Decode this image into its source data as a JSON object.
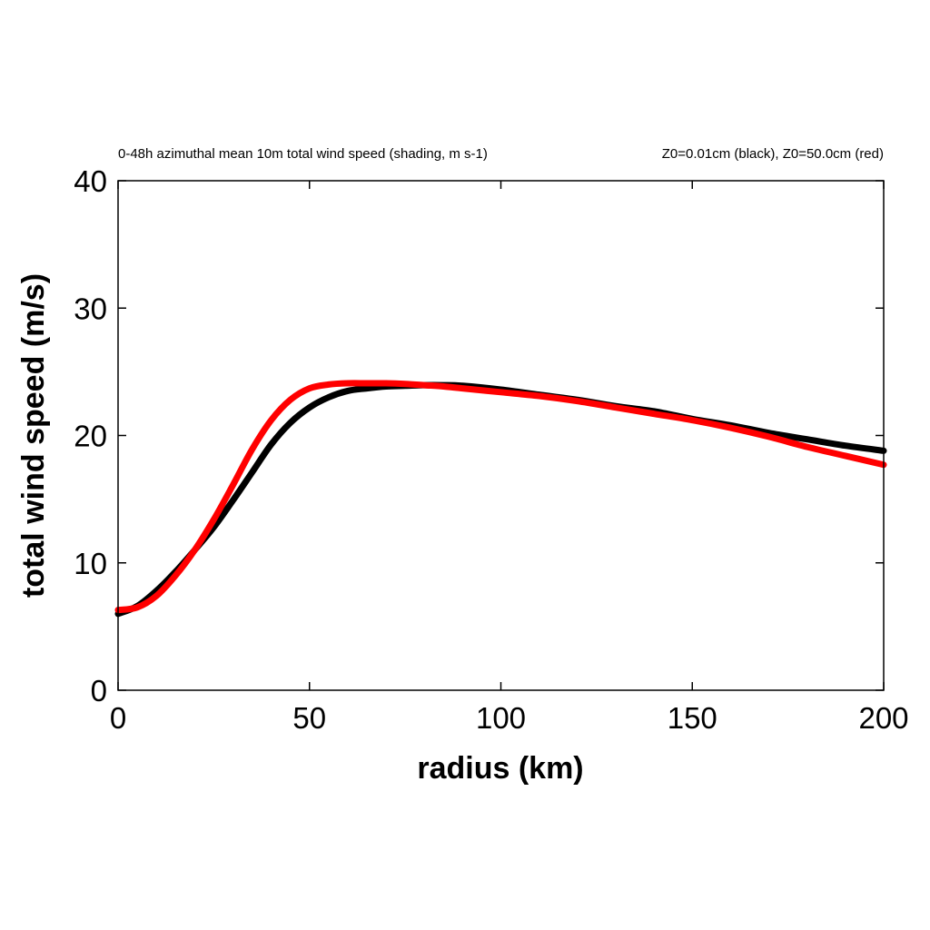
{
  "chart_data": {
    "type": "line",
    "title_left": "0-48h azimuthal mean 10m total wind speed (shading, m s-1)",
    "title_right": "Z0=0.01cm (black), Z0=50.0cm (red)",
    "xlabel": "radius (km)",
    "ylabel": "total wind speed (m/s)",
    "xlim": [
      0,
      200
    ],
    "ylim": [
      0,
      40
    ],
    "xticks": [
      0,
      50,
      100,
      150,
      200
    ],
    "yticks": [
      0,
      10,
      20,
      30,
      40
    ],
    "grid": false,
    "series": [
      {
        "color": "#000000",
        "x": [
          0,
          5,
          10,
          15,
          20,
          25,
          30,
          35,
          40,
          45,
          50,
          55,
          60,
          65,
          70,
          75,
          80,
          85,
          90,
          100,
          110,
          120,
          130,
          140,
          150,
          160,
          170,
          180,
          190,
          200
        ],
        "values": [
          6.0,
          6.6,
          7.8,
          9.3,
          11.0,
          12.8,
          14.9,
          17.1,
          19.3,
          21.0,
          22.2,
          23.0,
          23.5,
          23.7,
          23.85,
          23.9,
          23.95,
          23.95,
          23.9,
          23.6,
          23.2,
          22.8,
          22.3,
          21.9,
          21.3,
          20.8,
          20.2,
          19.7,
          19.2,
          18.8
        ]
      },
      {
        "color": "#ff0000",
        "x": [
          0,
          5,
          10,
          15,
          20,
          25,
          30,
          35,
          40,
          45,
          50,
          55,
          60,
          65,
          70,
          75,
          80,
          85,
          90,
          100,
          110,
          120,
          130,
          140,
          150,
          160,
          170,
          180,
          190,
          200
        ],
        "values": [
          6.3,
          6.5,
          7.4,
          9.0,
          11.0,
          13.4,
          16.1,
          18.9,
          21.2,
          22.8,
          23.7,
          24.0,
          24.1,
          24.1,
          24.1,
          24.05,
          23.95,
          23.85,
          23.7,
          23.4,
          23.1,
          22.7,
          22.2,
          21.7,
          21.2,
          20.6,
          19.9,
          19.1,
          18.4,
          17.7
        ]
      }
    ]
  }
}
